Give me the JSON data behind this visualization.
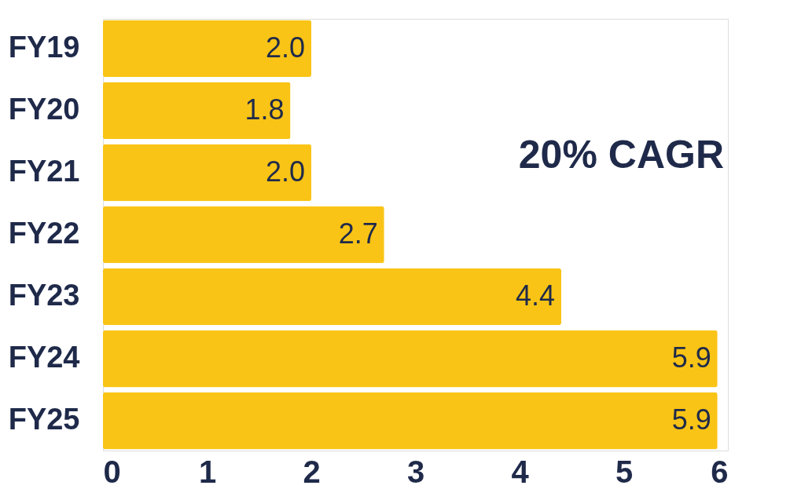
{
  "chart_data": {
    "type": "bar",
    "orientation": "horizontal",
    "categories": [
      "FY19",
      "FY20",
      "FY21",
      "FY22",
      "FY23",
      "FY24",
      "FY25"
    ],
    "values": [
      2.0,
      1.8,
      2.0,
      2.7,
      4.4,
      5.9,
      5.9
    ],
    "color": "#f9c416",
    "xlim": [
      0,
      6
    ],
    "xticks": [
      0,
      1,
      2,
      3,
      4,
      5,
      6
    ],
    "value_labels": [
      "2.0",
      "1.8",
      "2.0",
      "2.7",
      "4.4",
      "5.9",
      "5.9"
    ],
    "annotations": [
      "20% CAGR"
    ]
  }
}
